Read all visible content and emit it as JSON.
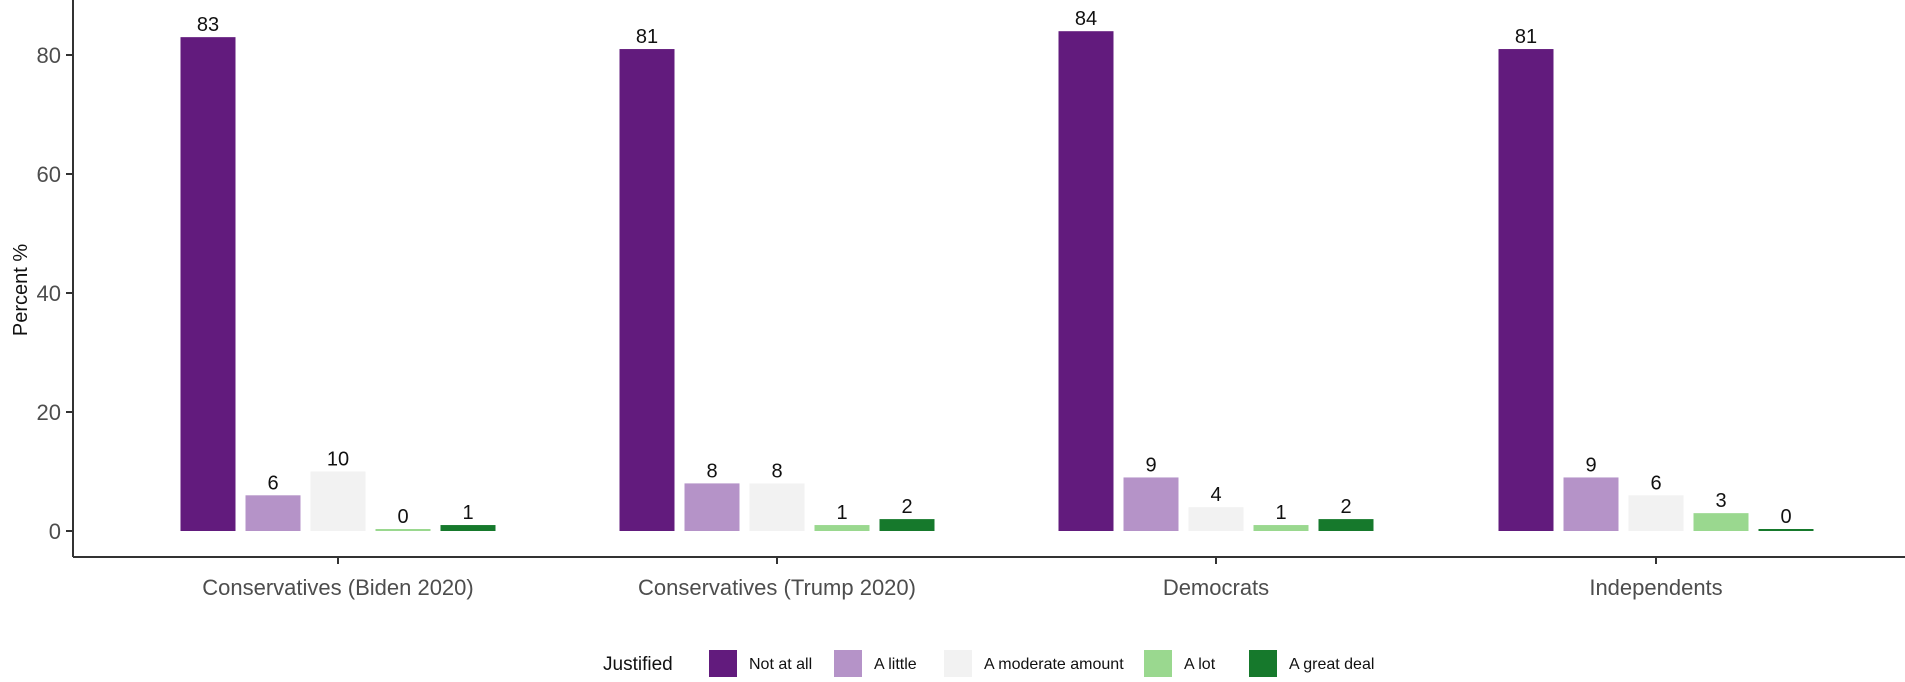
{
  "chart_data": {
    "type": "bar",
    "title": "",
    "xlabel": "",
    "ylabel": "Percent %",
    "ylim": [
      -4,
      86
    ],
    "yticks": [
      0,
      20,
      40,
      60,
      80
    ],
    "ytick_labels": [
      "0",
      "20",
      "40",
      "60",
      "80"
    ],
    "categories": [
      "Conservatives (Biden 2020)",
      "Conservatives (Trump 2020)",
      "Democrats",
      "Independents"
    ],
    "legend_title": "Justified",
    "legend_position": "bottom",
    "grid": false,
    "series": [
      {
        "name": "Not at all",
        "color": "#621b7d",
        "values": [
          83,
          81,
          84,
          81
        ]
      },
      {
        "name": "A little",
        "color": "#b593c8",
        "values": [
          6,
          8,
          9,
          9
        ]
      },
      {
        "name": "A moderate amount",
        "color": "#f2f2f2",
        "values": [
          10,
          8,
          4,
          6
        ]
      },
      {
        "name": "A lot",
        "color": "#9ad88f",
        "values": [
          0,
          1,
          1,
          3
        ]
      },
      {
        "name": "A great deal",
        "color": "#16792c",
        "values": [
          1,
          2,
          2,
          0
        ]
      }
    ]
  }
}
